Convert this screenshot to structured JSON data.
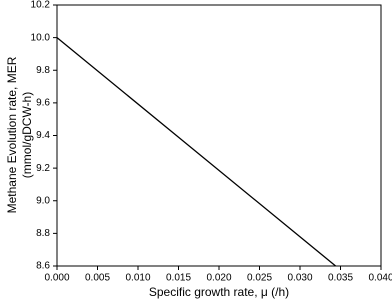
{
  "chart_data": {
    "type": "line",
    "xlabel": "Specific growth rate, μ (/h)",
    "ylabel": [
      "Methane Evolution rate, MER",
      "(mmol/gDCW-h)"
    ],
    "x": [
      0,
      0.0344
    ],
    "series": [
      {
        "color": "#000000",
        "values": [
          10.0,
          8.6
        ]
      }
    ],
    "xlim": [
      0,
      0.04
    ],
    "xticks": [
      {
        "value": 0,
        "label": "0.000"
      },
      {
        "value": 0.005,
        "label": "0.005"
      },
      {
        "value": 0.01,
        "label": "0.010"
      },
      {
        "value": 0.015,
        "label": "0.015"
      },
      {
        "value": 0.02,
        "label": "0.020"
      },
      {
        "value": 0.025,
        "label": "0.025"
      },
      {
        "value": 0.03,
        "label": "0.030"
      },
      {
        "value": 0.035,
        "label": "0.035"
      },
      {
        "value": 0.04,
        "label": "0.040"
      }
    ],
    "ylim": [
      8.6,
      10.2
    ],
    "yticks": [
      8.6,
      8.8,
      {
        "value": 9,
        "label": "9.0"
      },
      9.2,
      9.4,
      9.6,
      9.8,
      {
        "value": 10,
        "label": "10.0"
      },
      10.2
    ]
  }
}
